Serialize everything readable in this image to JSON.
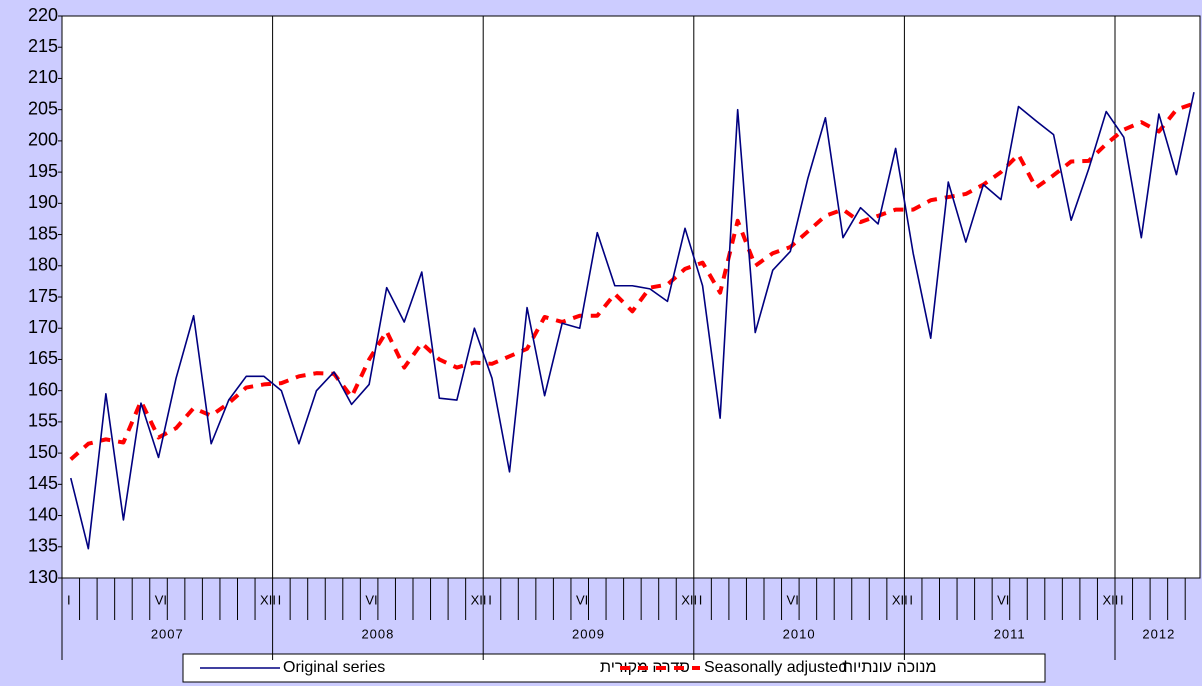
{
  "chart_data": {
    "type": "line",
    "categories": [
      "I",
      null,
      null,
      null,
      null,
      "VI",
      null,
      null,
      null,
      null,
      null,
      "XII",
      "I",
      null,
      null,
      null,
      null,
      "VI",
      null,
      null,
      null,
      null,
      null,
      "XII",
      "I",
      null,
      null,
      null,
      null,
      "VI",
      null,
      null,
      null,
      null,
      null,
      "XII",
      "I",
      null,
      null,
      null,
      null,
      "VI",
      null,
      null,
      null,
      null,
      null,
      "XII",
      "I",
      null,
      null,
      null,
      null,
      "VI",
      null,
      null,
      null,
      null,
      null,
      "XII",
      "I",
      null,
      null,
      null,
      null
    ],
    "years": [
      "2007",
      "2008",
      "2009",
      "2010",
      "2011",
      "2012"
    ],
    "series": [
      {
        "name": "Original series",
        "name_he": "סדרה מקורית",
        "color": "#000080",
        "style": "solid",
        "values": [
          146,
          134.7,
          159.5,
          139.3,
          158,
          149.3,
          162,
          172,
          151.5,
          158.5,
          162.3,
          162.3,
          160,
          151.5,
          160,
          163,
          157.8,
          161,
          176.5,
          171,
          179,
          158.8,
          158.5,
          170,
          162,
          147,
          173.3,
          159.2,
          170.8,
          170,
          185.3,
          176.8,
          176.8,
          176.3,
          174.3,
          186,
          176.8,
          155.6,
          205,
          169.3,
          179.3,
          182.3,
          194,
          203.7,
          184.5,
          189.3,
          186.7,
          198.8,
          182,
          168.4,
          193.4,
          183.8,
          193,
          190.6,
          205.5,
          203.2,
          201,
          187.3,
          195.5,
          204.7,
          200.6,
          184.5,
          204.3,
          194.6,
          207.8
        ]
      },
      {
        "name": "Seasonally adjusted",
        "name_he": "מנוכה עונתיות",
        "color": "#ff0000",
        "style": "dashed",
        "values": [
          149,
          151.5,
          152.2,
          151.7,
          158.3,
          152.5,
          154,
          157.2,
          156,
          158,
          160.5,
          161,
          161.2,
          162.3,
          162.8,
          162.7,
          159,
          165,
          169.5,
          163.7,
          167.6,
          165,
          163.7,
          164.5,
          164.3,
          165.5,
          166.7,
          171.8,
          171,
          172,
          172,
          175.5,
          172.7,
          176.5,
          177,
          179.5,
          180.5,
          175.7,
          187.2,
          180,
          182,
          183,
          185.5,
          188,
          189,
          187,
          188,
          189,
          189,
          190.5,
          191,
          191.5,
          193,
          195,
          197.8,
          192.5,
          194.5,
          196.7,
          196.8,
          199.5,
          201.8,
          203,
          201.5,
          205,
          206
        ]
      }
    ],
    "ylim": [
      130,
      220
    ],
    "yticks": [
      130,
      135,
      140,
      145,
      150,
      155,
      160,
      165,
      170,
      175,
      180,
      185,
      190,
      195,
      200,
      205,
      210,
      215,
      220
    ],
    "grid": false
  }
}
